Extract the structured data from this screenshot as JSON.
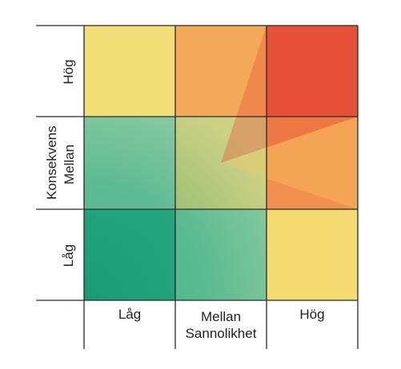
{
  "y_axis": {
    "title": "Konsekvens",
    "levels": [
      "Låg",
      "Mellan",
      "Hög"
    ]
  },
  "x_axis": {
    "title": "Sannolikhet",
    "levels": [
      "Låg",
      "Mellan",
      "Hög"
    ]
  },
  "colors": {
    "low": "#139a72",
    "mid_green": "#5dba97",
    "medium": "#f7e07a",
    "orange": "#f39a4f",
    "high": "#e2452f",
    "grid": "#2a2a2a"
  }
}
